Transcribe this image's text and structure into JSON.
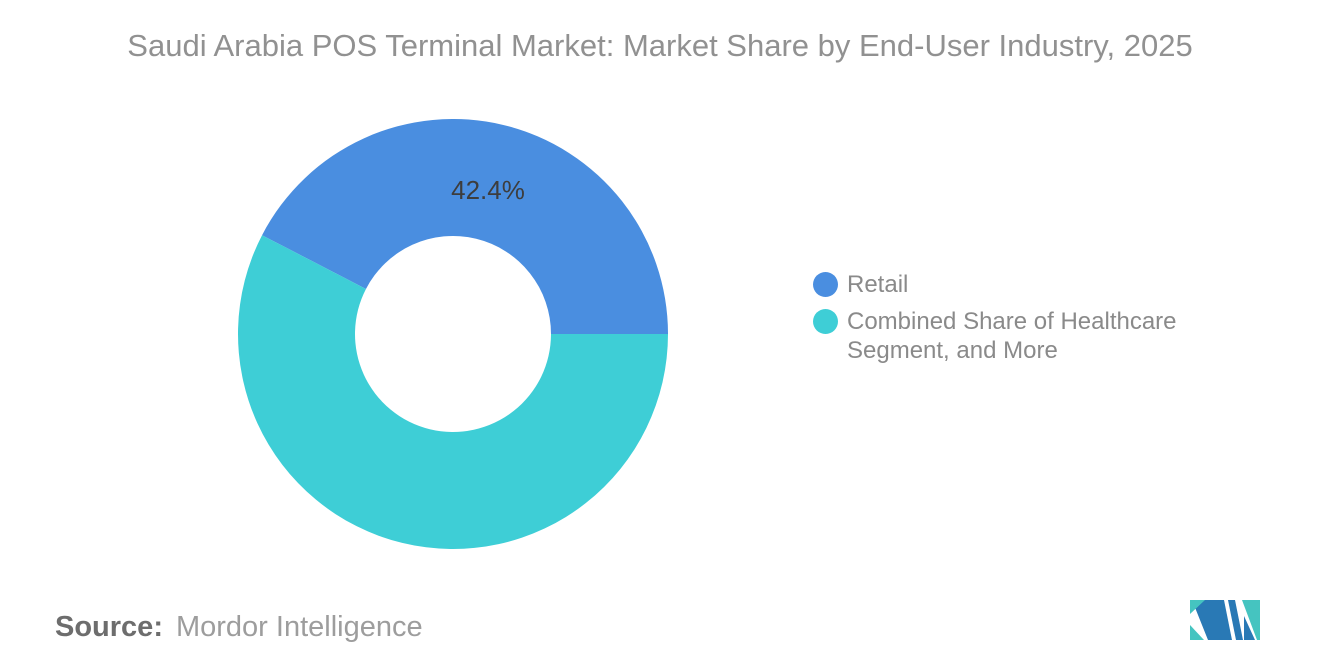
{
  "chart_data": {
    "type": "pie",
    "subtype": "donut",
    "title": "Saudi Arabia POS Terminal Market: Market Share by End-User Industry, 2025",
    "total": 100,
    "start_angle_deg": -62.64,
    "inner_radius_ratio": 0.455,
    "legend_position": "right",
    "slices": [
      {
        "label": "Retail",
        "value": 42.4,
        "color": "#4A8EE0",
        "data_label": "42.4%"
      },
      {
        "label": "Combined Share of Healthcare Segment, and More",
        "value": 57.6,
        "color": "#3ECED6",
        "data_label": null
      }
    ],
    "data_label_color": "#3D3D3D"
  },
  "source": {
    "prefix": "Source:",
    "text": "Mordor Intelligence"
  },
  "logo": {
    "name": "mordor-intelligence-logo",
    "blue": "#2979B5",
    "teal": "#45C4C0"
  }
}
